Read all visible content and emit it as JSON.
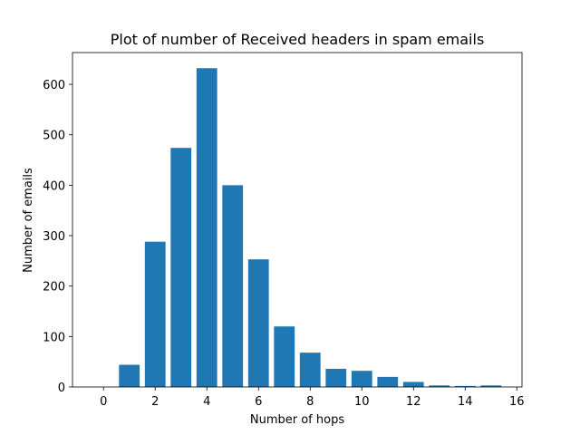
{
  "chart_data": {
    "type": "bar",
    "title": "Plot of number of Received headers in spam emails",
    "xlabel": "Number of hops",
    "ylabel": "Number of emails",
    "x": [
      0,
      1,
      2,
      3,
      4,
      5,
      6,
      7,
      8,
      9,
      10,
      11,
      12,
      13,
      14,
      15
    ],
    "values": [
      0,
      44,
      288,
      474,
      632,
      400,
      253,
      120,
      68,
      36,
      32,
      20,
      10,
      3,
      2,
      3
    ],
    "xlim": [
      -1.2,
      16.2
    ],
    "ylim": [
      0,
      663
    ],
    "xticks": [
      0,
      2,
      4,
      6,
      8,
      10,
      12,
      14,
      16
    ],
    "yticks": [
      0,
      100,
      200,
      300,
      400,
      500,
      600
    ],
    "bar_color": "#1f77b4",
    "grid": false,
    "legend": "none"
  }
}
